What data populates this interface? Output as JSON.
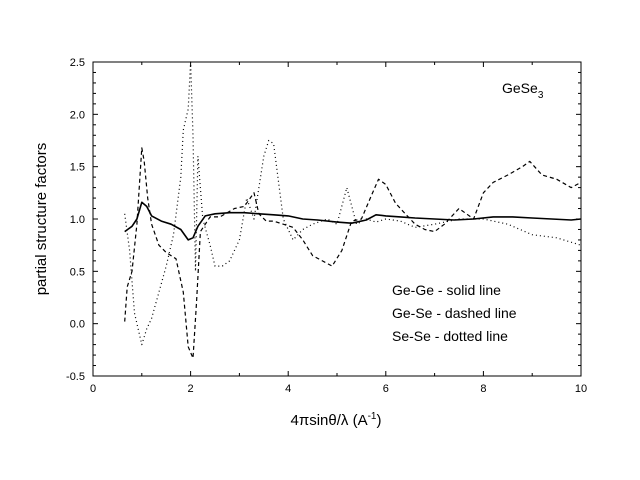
{
  "chart_data": {
    "type": "line",
    "title": "",
    "annotation": {
      "prefix": "GeSe",
      "subscript": "3"
    },
    "xlabel": {
      "pre": "4",
      "pi": "π",
      "mid": "sin",
      "theta": "θ",
      "slash": "/",
      "lambda": "λ",
      "unit": " (A",
      "exp": "-1",
      "close": ")"
    },
    "ylabel": "partial structure factors",
    "xlim": [
      0,
      10
    ],
    "ylim": [
      -0.5,
      2.5
    ],
    "xticks": [
      0,
      2,
      4,
      6,
      8,
      10
    ],
    "yticks": [
      -0.5,
      0.0,
      0.5,
      1.0,
      1.5,
      2.0,
      2.5
    ],
    "ytick_labels": [
      "-0.5",
      "0.0",
      "0.5",
      "1.0",
      "1.5",
      "2.0",
      "2.5"
    ],
    "grid": false,
    "legend_text": [
      "Ge-Ge - solid line",
      "Ge-Se - dashed line",
      "Se-Se - dotted line"
    ],
    "series": [
      {
        "name": "Ge-Ge",
        "style": "solid",
        "x": [
          0.65,
          0.8,
          0.9,
          1.0,
          1.1,
          1.2,
          1.4,
          1.6,
          1.8,
          1.95,
          2.05,
          2.15,
          2.3,
          2.5,
          2.8,
          3.1,
          3.4,
          3.7,
          4.0,
          4.3,
          4.6,
          5.0,
          5.3,
          5.6,
          5.8,
          6.0,
          6.3,
          6.6,
          7.0,
          7.4,
          7.8,
          8.2,
          8.6,
          9.0,
          9.4,
          9.8,
          10.0
        ],
        "y": [
          0.88,
          0.93,
          1.0,
          1.16,
          1.12,
          1.03,
          0.98,
          0.95,
          0.9,
          0.8,
          0.82,
          0.93,
          1.03,
          1.05,
          1.06,
          1.06,
          1.05,
          1.04,
          1.03,
          1.0,
          0.99,
          0.97,
          0.96,
          0.99,
          1.04,
          1.03,
          1.02,
          1.01,
          1.0,
          0.99,
          1.0,
          1.02,
          1.02,
          1.01,
          1.0,
          0.99,
          1.0
        ]
      },
      {
        "name": "Ge-Se",
        "style": "dashed",
        "x": [
          0.65,
          0.7,
          0.8,
          0.9,
          1.0,
          1.05,
          1.12,
          1.2,
          1.35,
          1.5,
          1.7,
          1.85,
          1.95,
          2.05,
          2.12,
          2.2,
          2.4,
          2.6,
          2.9,
          3.1,
          3.3,
          3.4,
          3.55,
          3.7,
          3.9,
          4.1,
          4.3,
          4.5,
          4.7,
          4.9,
          5.1,
          5.3,
          5.5,
          5.7,
          5.85,
          6.0,
          6.2,
          6.4,
          6.6,
          6.8,
          7.0,
          7.2,
          7.5,
          7.8,
          8.0,
          8.2,
          8.5,
          8.8,
          8.95,
          9.2,
          9.5,
          9.8,
          10.0
        ],
        "y": [
          0.02,
          0.35,
          0.5,
          0.95,
          1.68,
          1.55,
          1.2,
          0.95,
          0.75,
          0.68,
          0.62,
          0.3,
          -0.22,
          -0.33,
          0.2,
          0.88,
          1.02,
          1.02,
          1.1,
          1.12,
          1.25,
          1.05,
          0.98,
          0.98,
          0.95,
          0.92,
          0.8,
          0.65,
          0.6,
          0.55,
          0.7,
          0.98,
          1.0,
          1.22,
          1.38,
          1.33,
          1.15,
          1.05,
          0.95,
          0.9,
          0.88,
          0.95,
          1.1,
          1.0,
          1.25,
          1.35,
          1.42,
          1.5,
          1.55,
          1.42,
          1.38,
          1.3,
          1.35
        ]
      },
      {
        "name": "Se-Se",
        "style": "dotted",
        "x": [
          0.65,
          0.75,
          0.85,
          1.0,
          1.1,
          1.2,
          1.35,
          1.5,
          1.65,
          1.8,
          1.85,
          1.95,
          2.0,
          2.05,
          2.1,
          2.15,
          2.25,
          2.4,
          2.5,
          2.65,
          2.8,
          3.0,
          3.15,
          3.3,
          3.4,
          3.5,
          3.6,
          3.7,
          3.9,
          4.1,
          4.3,
          4.5,
          4.8,
          5.0,
          5.2,
          5.4,
          5.6,
          5.8,
          6.0,
          6.3,
          6.6,
          7.0,
          7.5,
          8.0,
          8.5,
          9.0,
          9.5,
          10.0
        ],
        "y": [
          1.05,
          0.7,
          0.1,
          -0.2,
          -0.05,
          0.05,
          0.3,
          0.55,
          0.85,
          1.4,
          1.85,
          2.05,
          2.5,
          1.8,
          0.5,
          1.6,
          1.0,
          0.75,
          0.55,
          0.55,
          0.6,
          0.8,
          1.2,
          1.0,
          1.3,
          1.6,
          1.75,
          1.72,
          1.0,
          0.8,
          0.9,
          0.95,
          1.0,
          0.95,
          1.3,
          0.95,
          1.0,
          0.97,
          1.0,
          0.98,
          0.92,
          0.95,
          1.0,
          1.0,
          0.95,
          0.85,
          0.82,
          0.75
        ]
      }
    ]
  }
}
